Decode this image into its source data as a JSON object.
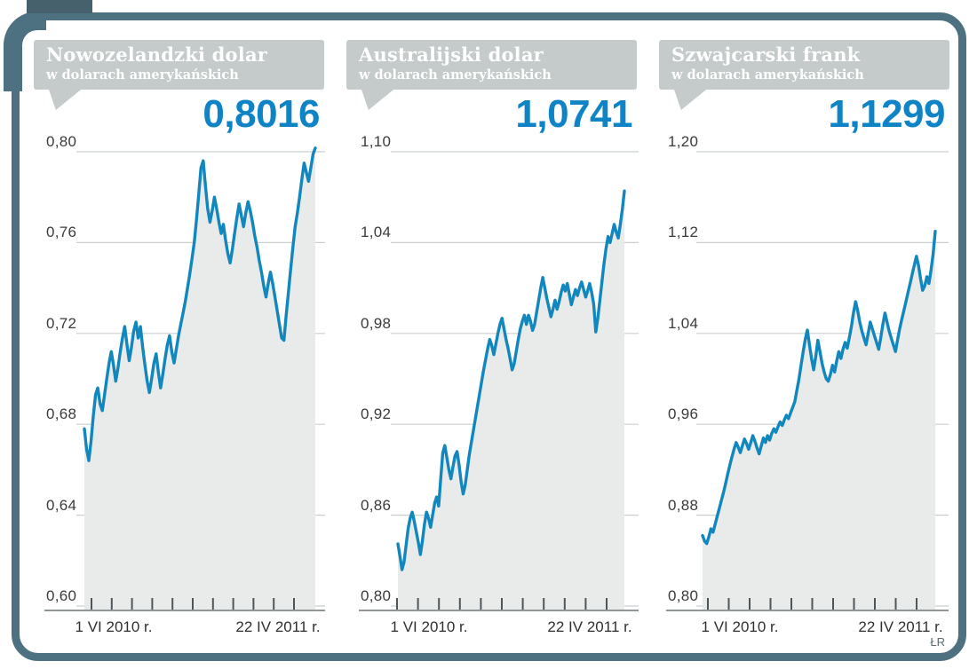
{
  "credit": "ŁR",
  "colors": {
    "accent_blue": "#0e84c6",
    "line_blue": "#1287be",
    "area_fill": "#e9ebeb",
    "bubble_gray": "#c5cbca",
    "grid_gray": "#cbcfcf",
    "axis_gray": "#8e9697",
    "frame_slate": "#4d7181",
    "tab_slate": "#47616c"
  },
  "chart_data": [
    {
      "type": "area",
      "title": "Nowozelandzki dolar",
      "subtitle": "w dolarach amerykańskich",
      "current_value_label": "0,8016",
      "current_value": 0.8016,
      "ylim": [
        0.6,
        0.8
      ],
      "y_ticks": [
        "0,80",
        "0,76",
        "0,72",
        "0,68",
        "0,64",
        "0,60"
      ],
      "x_tick_labels": [
        "1 VI 2010 r.",
        "22 IV 2011 r."
      ],
      "values": [
        0.678,
        0.669,
        0.664,
        0.673,
        0.684,
        0.693,
        0.696,
        0.689,
        0.686,
        0.693,
        0.7,
        0.707,
        0.712,
        0.706,
        0.699,
        0.705,
        0.712,
        0.718,
        0.723,
        0.715,
        0.708,
        0.714,
        0.721,
        0.725,
        0.718,
        0.723,
        0.714,
        0.706,
        0.699,
        0.694,
        0.7,
        0.707,
        0.711,
        0.703,
        0.696,
        0.702,
        0.709,
        0.715,
        0.719,
        0.712,
        0.707,
        0.713,
        0.719,
        0.724,
        0.729,
        0.734,
        0.74,
        0.746,
        0.753,
        0.76,
        0.77,
        0.781,
        0.793,
        0.796,
        0.785,
        0.775,
        0.769,
        0.774,
        0.78,
        0.775,
        0.769,
        0.764,
        0.768,
        0.761,
        0.755,
        0.751,
        0.757,
        0.764,
        0.771,
        0.777,
        0.772,
        0.767,
        0.773,
        0.778,
        0.774,
        0.769,
        0.763,
        0.758,
        0.752,
        0.747,
        0.741,
        0.736,
        0.742,
        0.747,
        0.742,
        0.736,
        0.73,
        0.724,
        0.718,
        0.717,
        0.728,
        0.738,
        0.748,
        0.758,
        0.767,
        0.773,
        0.78,
        0.788,
        0.795,
        0.791,
        0.787,
        0.793,
        0.799,
        0.8016
      ]
    },
    {
      "type": "area",
      "title": "Australijski dolar",
      "subtitle": "w dolarach amerykańskich",
      "current_value_label": "1,0741",
      "current_value": 1.0741,
      "ylim": [
        0.8,
        1.1
      ],
      "y_ticks": [
        "1,10",
        "1,04",
        "0,98",
        "0,92",
        "0,86",
        "0,80"
      ],
      "x_tick_labels": [
        "1 VI 2010 r.",
        "22 IV 2011 r."
      ],
      "values": [
        0.841,
        0.833,
        0.824,
        0.829,
        0.84,
        0.851,
        0.858,
        0.862,
        0.856,
        0.849,
        0.842,
        0.834,
        0.843,
        0.854,
        0.862,
        0.858,
        0.852,
        0.86,
        0.868,
        0.872,
        0.866,
        0.884,
        0.901,
        0.906,
        0.898,
        0.89,
        0.884,
        0.892,
        0.899,
        0.902,
        0.893,
        0.882,
        0.874,
        0.88,
        0.89,
        0.9,
        0.908,
        0.916,
        0.924,
        0.932,
        0.94,
        0.948,
        0.956,
        0.963,
        0.97,
        0.976,
        0.972,
        0.966,
        0.973,
        0.98,
        0.986,
        0.99,
        0.983,
        0.976,
        0.97,
        0.963,
        0.956,
        0.96,
        0.968,
        0.976,
        0.983,
        0.988,
        0.992,
        0.986,
        0.992,
        0.988,
        0.982,
        0.986,
        0.994,
        1.002,
        1.01,
        1.017,
        1.01,
        1.003,
        0.997,
        0.991,
        0.996,
        1.002,
        0.996,
        1.001,
        1.007,
        1.012,
        1.008,
        1.013,
        1.006,
        0.999,
        1.004,
        1.009,
        1.005,
        1.01,
        1.014,
        1.009,
        1.004,
        1.008,
        1.013,
        1.007,
        0.999,
        0.981,
        0.99,
        1.002,
        1.014,
        1.026,
        1.036,
        1.044,
        1.04,
        1.046,
        1.052,
        1.047,
        1.043,
        1.052,
        1.062,
        1.0741
      ]
    },
    {
      "type": "area",
      "title": "Szwajcarski frank",
      "subtitle": "w dolarach amerykańskich",
      "current_value_label": "1,1299",
      "current_value": 1.1299,
      "ylim": [
        0.8,
        1.2
      ],
      "y_ticks": [
        "1,20",
        "1,12",
        "1,04",
        "0,96",
        "0,88",
        "0,80"
      ],
      "x_tick_labels": [
        "1 VI 2010 r.",
        "22 IV 2011 r."
      ],
      "values": [
        0.862,
        0.857,
        0.855,
        0.861,
        0.868,
        0.865,
        0.872,
        0.879,
        0.886,
        0.893,
        0.9,
        0.908,
        0.916,
        0.924,
        0.931,
        0.938,
        0.944,
        0.94,
        0.935,
        0.941,
        0.947,
        0.943,
        0.938,
        0.944,
        0.95,
        0.945,
        0.939,
        0.934,
        0.941,
        0.948,
        0.944,
        0.95,
        0.946,
        0.952,
        0.956,
        0.953,
        0.958,
        0.962,
        0.959,
        0.964,
        0.968,
        0.965,
        0.97,
        0.975,
        0.98,
        0.99,
        1.0,
        1.012,
        1.024,
        1.035,
        1.043,
        1.03,
        1.018,
        1.008,
        1.02,
        1.034,
        1.024,
        1.014,
        1.006,
        1.0,
        0.998,
        1.004,
        1.012,
        1.006,
        1.016,
        1.024,
        1.018,
        1.026,
        1.032,
        1.027,
        1.036,
        1.046,
        1.058,
        1.068,
        1.06,
        1.05,
        1.042,
        1.036,
        1.03,
        1.04,
        1.05,
        1.044,
        1.038,
        1.032,
        1.026,
        1.036,
        1.048,
        1.058,
        1.05,
        1.042,
        1.036,
        1.03,
        1.024,
        1.034,
        1.044,
        1.052,
        1.06,
        1.068,
        1.076,
        1.084,
        1.092,
        1.1,
        1.108,
        1.1,
        1.088,
        1.078,
        1.082,
        1.09,
        1.084,
        1.096,
        1.11,
        1.1299
      ]
    }
  ]
}
